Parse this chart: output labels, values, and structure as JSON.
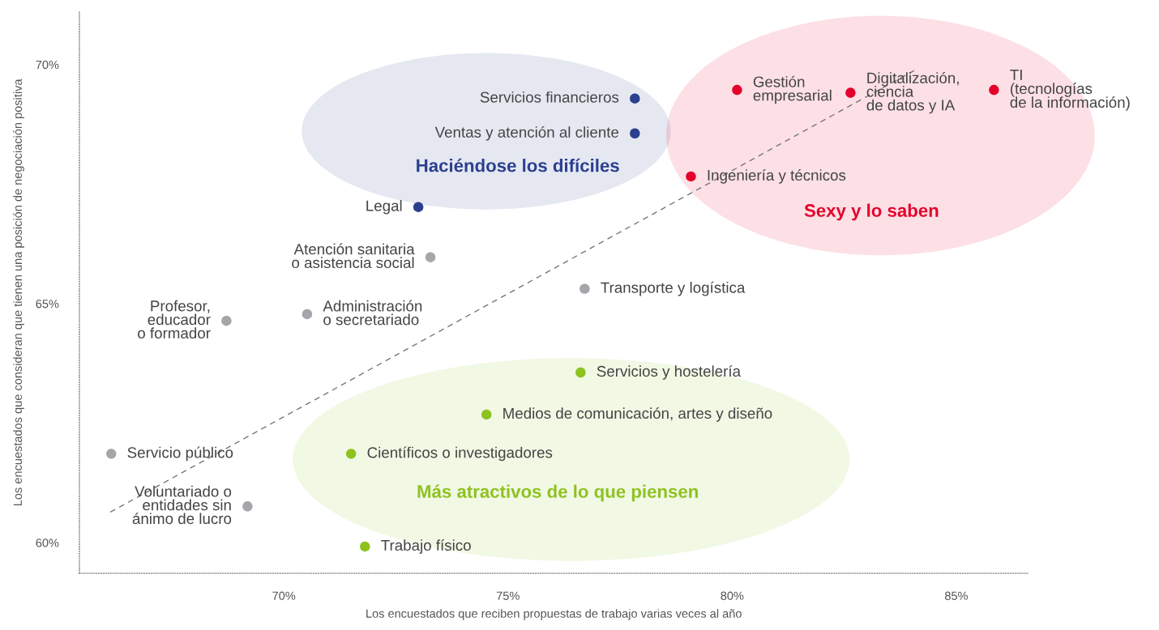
{
  "chart_data": {
    "type": "scatter",
    "xlabel": "Los encuestados que reciben propuestas de trabajo varias veces al año",
    "ylabel": "Los encuestados que consideran que tienen una posición de negociación positiva",
    "xlim": [
      65.44,
      86.6
    ],
    "ylim": [
      59.36,
      71.1
    ],
    "xticks": [
      {
        "value": 70,
        "label": "70%"
      },
      {
        "value": 75,
        "label": "75%"
      },
      {
        "value": 80,
        "label": "80%"
      },
      {
        "value": 85,
        "label": "85%"
      }
    ],
    "yticks": [
      {
        "value": 60,
        "label": "60%"
      },
      {
        "value": 65,
        "label": "65%"
      },
      {
        "value": 70,
        "label": "70%"
      }
    ],
    "grid": false,
    "legend": false,
    "marker": "circle",
    "series": [
      {
        "color": "#a5a5aa",
        "x": [
          73.27,
          76.71,
          70.52,
          68.72,
          66.15,
          69.19
        ],
        "values": [
          65.97,
          65.31,
          64.78,
          64.64,
          61.86,
          60.76
        ]
      },
      {
        "name": "Haciéndose los difíciles",
        "color": "#2b3f8f",
        "x": [
          77.83,
          77.83,
          73.0
        ],
        "values": [
          69.29,
          68.56,
          67.02
        ]
      },
      {
        "name": "Sexy y lo saben",
        "color": "#e4002b",
        "x": [
          80.11,
          82.64,
          85.84,
          79.08
        ],
        "values": [
          69.47,
          69.41,
          69.47,
          67.66
        ]
      },
      {
        "name": "Más atractivos de lo que piensen",
        "color": "#8dc21f",
        "x": [
          76.62,
          74.52,
          71.5,
          71.81
        ],
        "values": [
          63.56,
          62.68,
          61.86,
          59.92
        ]
      },
      {
        "type": "line",
        "line_style": "dashed",
        "marker": "none",
        "color": "#777777",
        "x": [
          66.13,
          84.07
        ],
        "values": [
          60.64,
          69.88
        ]
      }
    ],
    "annotations": [
      {
        "text": "Atención sanitaria\no asistencia social",
        "x": 73.27,
        "y": 65.97
      },
      {
        "text": "Transporte y logística",
        "x": 76.71,
        "y": 65.31
      },
      {
        "text": "Administración\no secretariado",
        "x": 70.52,
        "y": 64.78
      },
      {
        "text": "Profesor,\neducador\no formador",
        "x": 68.72,
        "y": 64.64
      },
      {
        "text": "Servicio público",
        "x": 66.15,
        "y": 61.86
      },
      {
        "text": "Voluntariado o\nentidades sin\nánimo de lucro",
        "x": 69.19,
        "y": 60.76
      },
      {
        "text": "Servicios financieros",
        "x": 77.83,
        "y": 69.29
      },
      {
        "text": "Ventas y atención al cliente",
        "x": 77.83,
        "y": 68.56
      },
      {
        "text": "Legal",
        "x": 73.0,
        "y": 67.02
      },
      {
        "text": "Gestión\nempresarial",
        "x": 80.11,
        "y": 69.47
      },
      {
        "text": "Digitalización,\nciencia\nde datos y IA",
        "x": 82.64,
        "y": 69.41
      },
      {
        "text": "TI\n(tecnologías\nde la información)",
        "x": 85.84,
        "y": 69.47
      },
      {
        "text": "Ingeniería y técnicos",
        "x": 79.08,
        "y": 67.66
      },
      {
        "text": "Servicios y hostelería",
        "x": 76.62,
        "y": 63.56
      },
      {
        "text": "Medios de comunicación, artes y diseño",
        "x": 74.52,
        "y": 62.68
      },
      {
        "text": "Científicos o investigadores",
        "x": 71.5,
        "y": 61.86
      },
      {
        "text": "Trabajo físico",
        "x": 71.81,
        "y": 59.92
      }
    ]
  }
}
